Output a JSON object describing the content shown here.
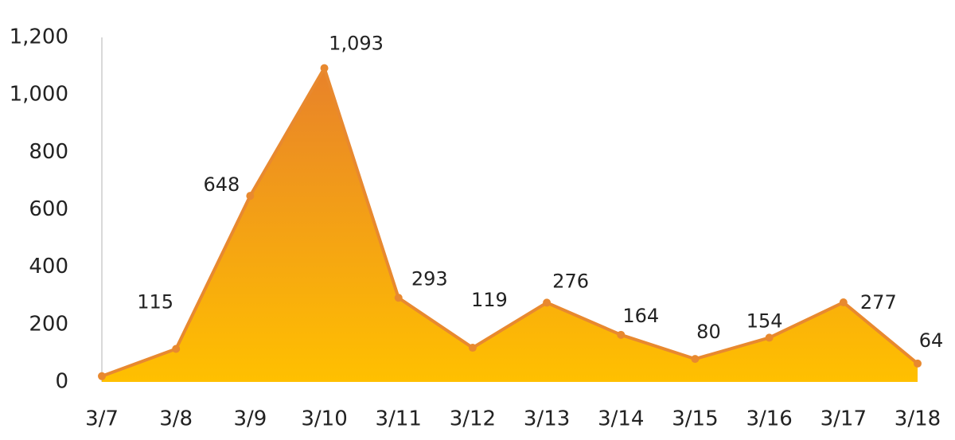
{
  "chart_data": {
    "type": "area",
    "categories": [
      "3/7",
      "3/8",
      "3/9",
      "3/10",
      "3/11",
      "3/12",
      "3/13",
      "3/14",
      "3/15",
      "3/16",
      "3/17",
      "3/18"
    ],
    "values": [
      20,
      115,
      648,
      1093,
      293,
      119,
      276,
      164,
      80,
      154,
      277,
      64
    ],
    "value_labels": [
      null,
      "115",
      "648",
      "1,093",
      "293",
      "119",
      "276",
      "164",
      "80",
      "154",
      "277",
      "64"
    ],
    "color": "#e8892f",
    "fill_gradient": [
      "#e8822a",
      "#ffc000"
    ],
    "ylim": [
      0,
      1200
    ],
    "yticks": [
      0,
      200,
      400,
      600,
      800,
      {
        "value": 1000,
        "label": "1,000"
      },
      {
        "value": 1200,
        "label": "1,200"
      }
    ]
  }
}
